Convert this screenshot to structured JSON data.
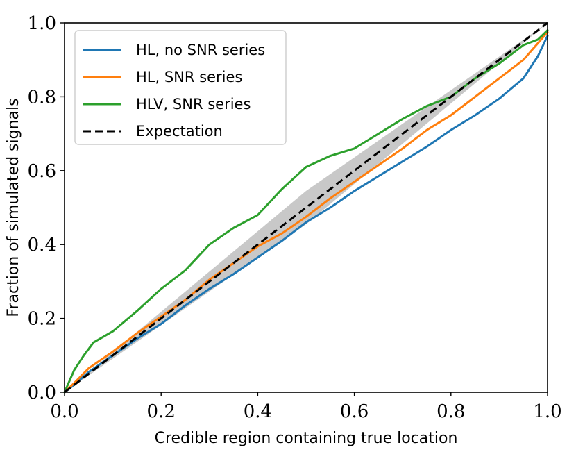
{
  "chart_data": {
    "type": "line",
    "title": "",
    "xlabel": "Credible region containing true location",
    "ylabel": "Fraction of simulated signals",
    "xlim": [
      0.0,
      1.0
    ],
    "ylim": [
      0.0,
      1.0
    ],
    "x_ticks": [
      "0.0",
      "0.2",
      "0.4",
      "0.6",
      "0.8",
      "1.0"
    ],
    "y_ticks": [
      "0.0",
      "0.2",
      "0.4",
      "0.6",
      "0.8",
      "1.0"
    ],
    "grid": false,
    "legend_position": "top-left",
    "confidence_band": {
      "color": "#c8c8c8",
      "x": [
        0.0,
        0.5,
        1.0
      ],
      "lower": [
        0.0,
        0.455,
        1.0
      ],
      "upper": [
        0.0,
        0.545,
        1.0
      ]
    },
    "series": [
      {
        "name": "HL, no SNR series",
        "color": "#1f77b4",
        "style": "solid",
        "x": [
          0,
          0.02,
          0.05,
          0.1,
          0.15,
          0.2,
          0.25,
          0.3,
          0.35,
          0.4,
          0.45,
          0.5,
          0.55,
          0.6,
          0.65,
          0.7,
          0.75,
          0.8,
          0.85,
          0.9,
          0.95,
          0.98,
          1.0
        ],
        "values": [
          0,
          0.02,
          0.055,
          0.1,
          0.145,
          0.185,
          0.235,
          0.28,
          0.32,
          0.365,
          0.41,
          0.46,
          0.5,
          0.545,
          0.585,
          0.625,
          0.665,
          0.71,
          0.75,
          0.795,
          0.85,
          0.91,
          0.965
        ]
      },
      {
        "name": "HL, SNR series",
        "color": "#ff7f0e",
        "style": "solid",
        "x": [
          0,
          0.02,
          0.05,
          0.1,
          0.15,
          0.2,
          0.25,
          0.3,
          0.35,
          0.4,
          0.45,
          0.5,
          0.55,
          0.6,
          0.65,
          0.7,
          0.75,
          0.8,
          0.85,
          0.9,
          0.95,
          0.98,
          1.0
        ],
        "values": [
          0,
          0.025,
          0.065,
          0.11,
          0.16,
          0.205,
          0.25,
          0.305,
          0.35,
          0.395,
          0.43,
          0.475,
          0.525,
          0.57,
          0.615,
          0.66,
          0.71,
          0.75,
          0.8,
          0.85,
          0.9,
          0.945,
          0.975
        ]
      },
      {
        "name": "HLV, SNR series",
        "color": "#2ca02c",
        "style": "solid",
        "x": [
          0,
          0.02,
          0.04,
          0.06,
          0.1,
          0.15,
          0.2,
          0.25,
          0.3,
          0.35,
          0.4,
          0.45,
          0.5,
          0.55,
          0.6,
          0.65,
          0.7,
          0.75,
          0.8,
          0.85,
          0.9,
          0.95,
          0.98,
          1.0
        ],
        "values": [
          0,
          0.06,
          0.1,
          0.135,
          0.165,
          0.22,
          0.28,
          0.33,
          0.4,
          0.445,
          0.48,
          0.55,
          0.61,
          0.64,
          0.66,
          0.7,
          0.74,
          0.775,
          0.8,
          0.85,
          0.89,
          0.94,
          0.955,
          0.98
        ]
      },
      {
        "name": "Expectation",
        "color": "#000000",
        "style": "dashed",
        "x": [
          0,
          1
        ],
        "values": [
          0,
          1
        ]
      }
    ]
  }
}
